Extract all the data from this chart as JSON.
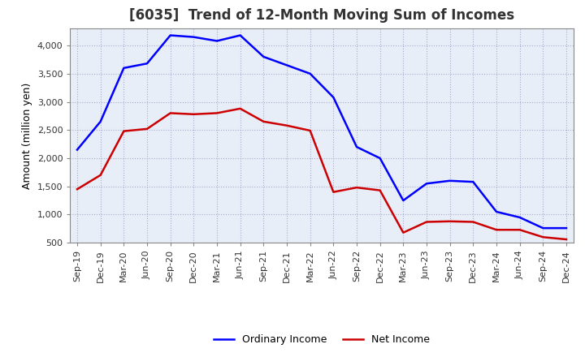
{
  "title": "[6035]  Trend of 12-Month Moving Sum of Incomes",
  "ylabel": "Amount (million yen)",
  "background_color": "#ffffff",
  "plot_bg_color": "#e8eef8",
  "grid_color": "#aaaacc",
  "x_labels": [
    "Sep-19",
    "Dec-19",
    "Mar-20",
    "Jun-20",
    "Sep-20",
    "Dec-20",
    "Mar-21",
    "Jun-21",
    "Sep-21",
    "Dec-21",
    "Mar-22",
    "Jun-22",
    "Sep-22",
    "Dec-22",
    "Mar-23",
    "Jun-23",
    "Sep-23",
    "Dec-23",
    "Mar-24",
    "Jun-24",
    "Sep-24",
    "Dec-24"
  ],
  "ordinary_income": [
    2150,
    2650,
    3600,
    3680,
    4180,
    4150,
    4080,
    4180,
    3800,
    3650,
    3500,
    3080,
    2200,
    2000,
    1250,
    1550,
    1600,
    1580,
    1050,
    950,
    760,
    760
  ],
  "net_income": [
    1450,
    1700,
    2480,
    2520,
    2800,
    2780,
    2800,
    2880,
    2650,
    2580,
    2490,
    1400,
    1480,
    1430,
    680,
    870,
    880,
    870,
    730,
    730,
    600,
    560
  ],
  "ordinary_color": "#0000ff",
  "net_color": "#cc0000",
  "ylim_min": 500,
  "ylim_max": 4300,
  "yticks": [
    500,
    1000,
    1500,
    2000,
    2500,
    3000,
    3500,
    4000
  ],
  "title_fontsize": 12,
  "axis_label_fontsize": 9,
  "tick_fontsize": 8,
  "legend_labels": [
    "Ordinary Income",
    "Net Income"
  ],
  "legend_fontsize": 9
}
